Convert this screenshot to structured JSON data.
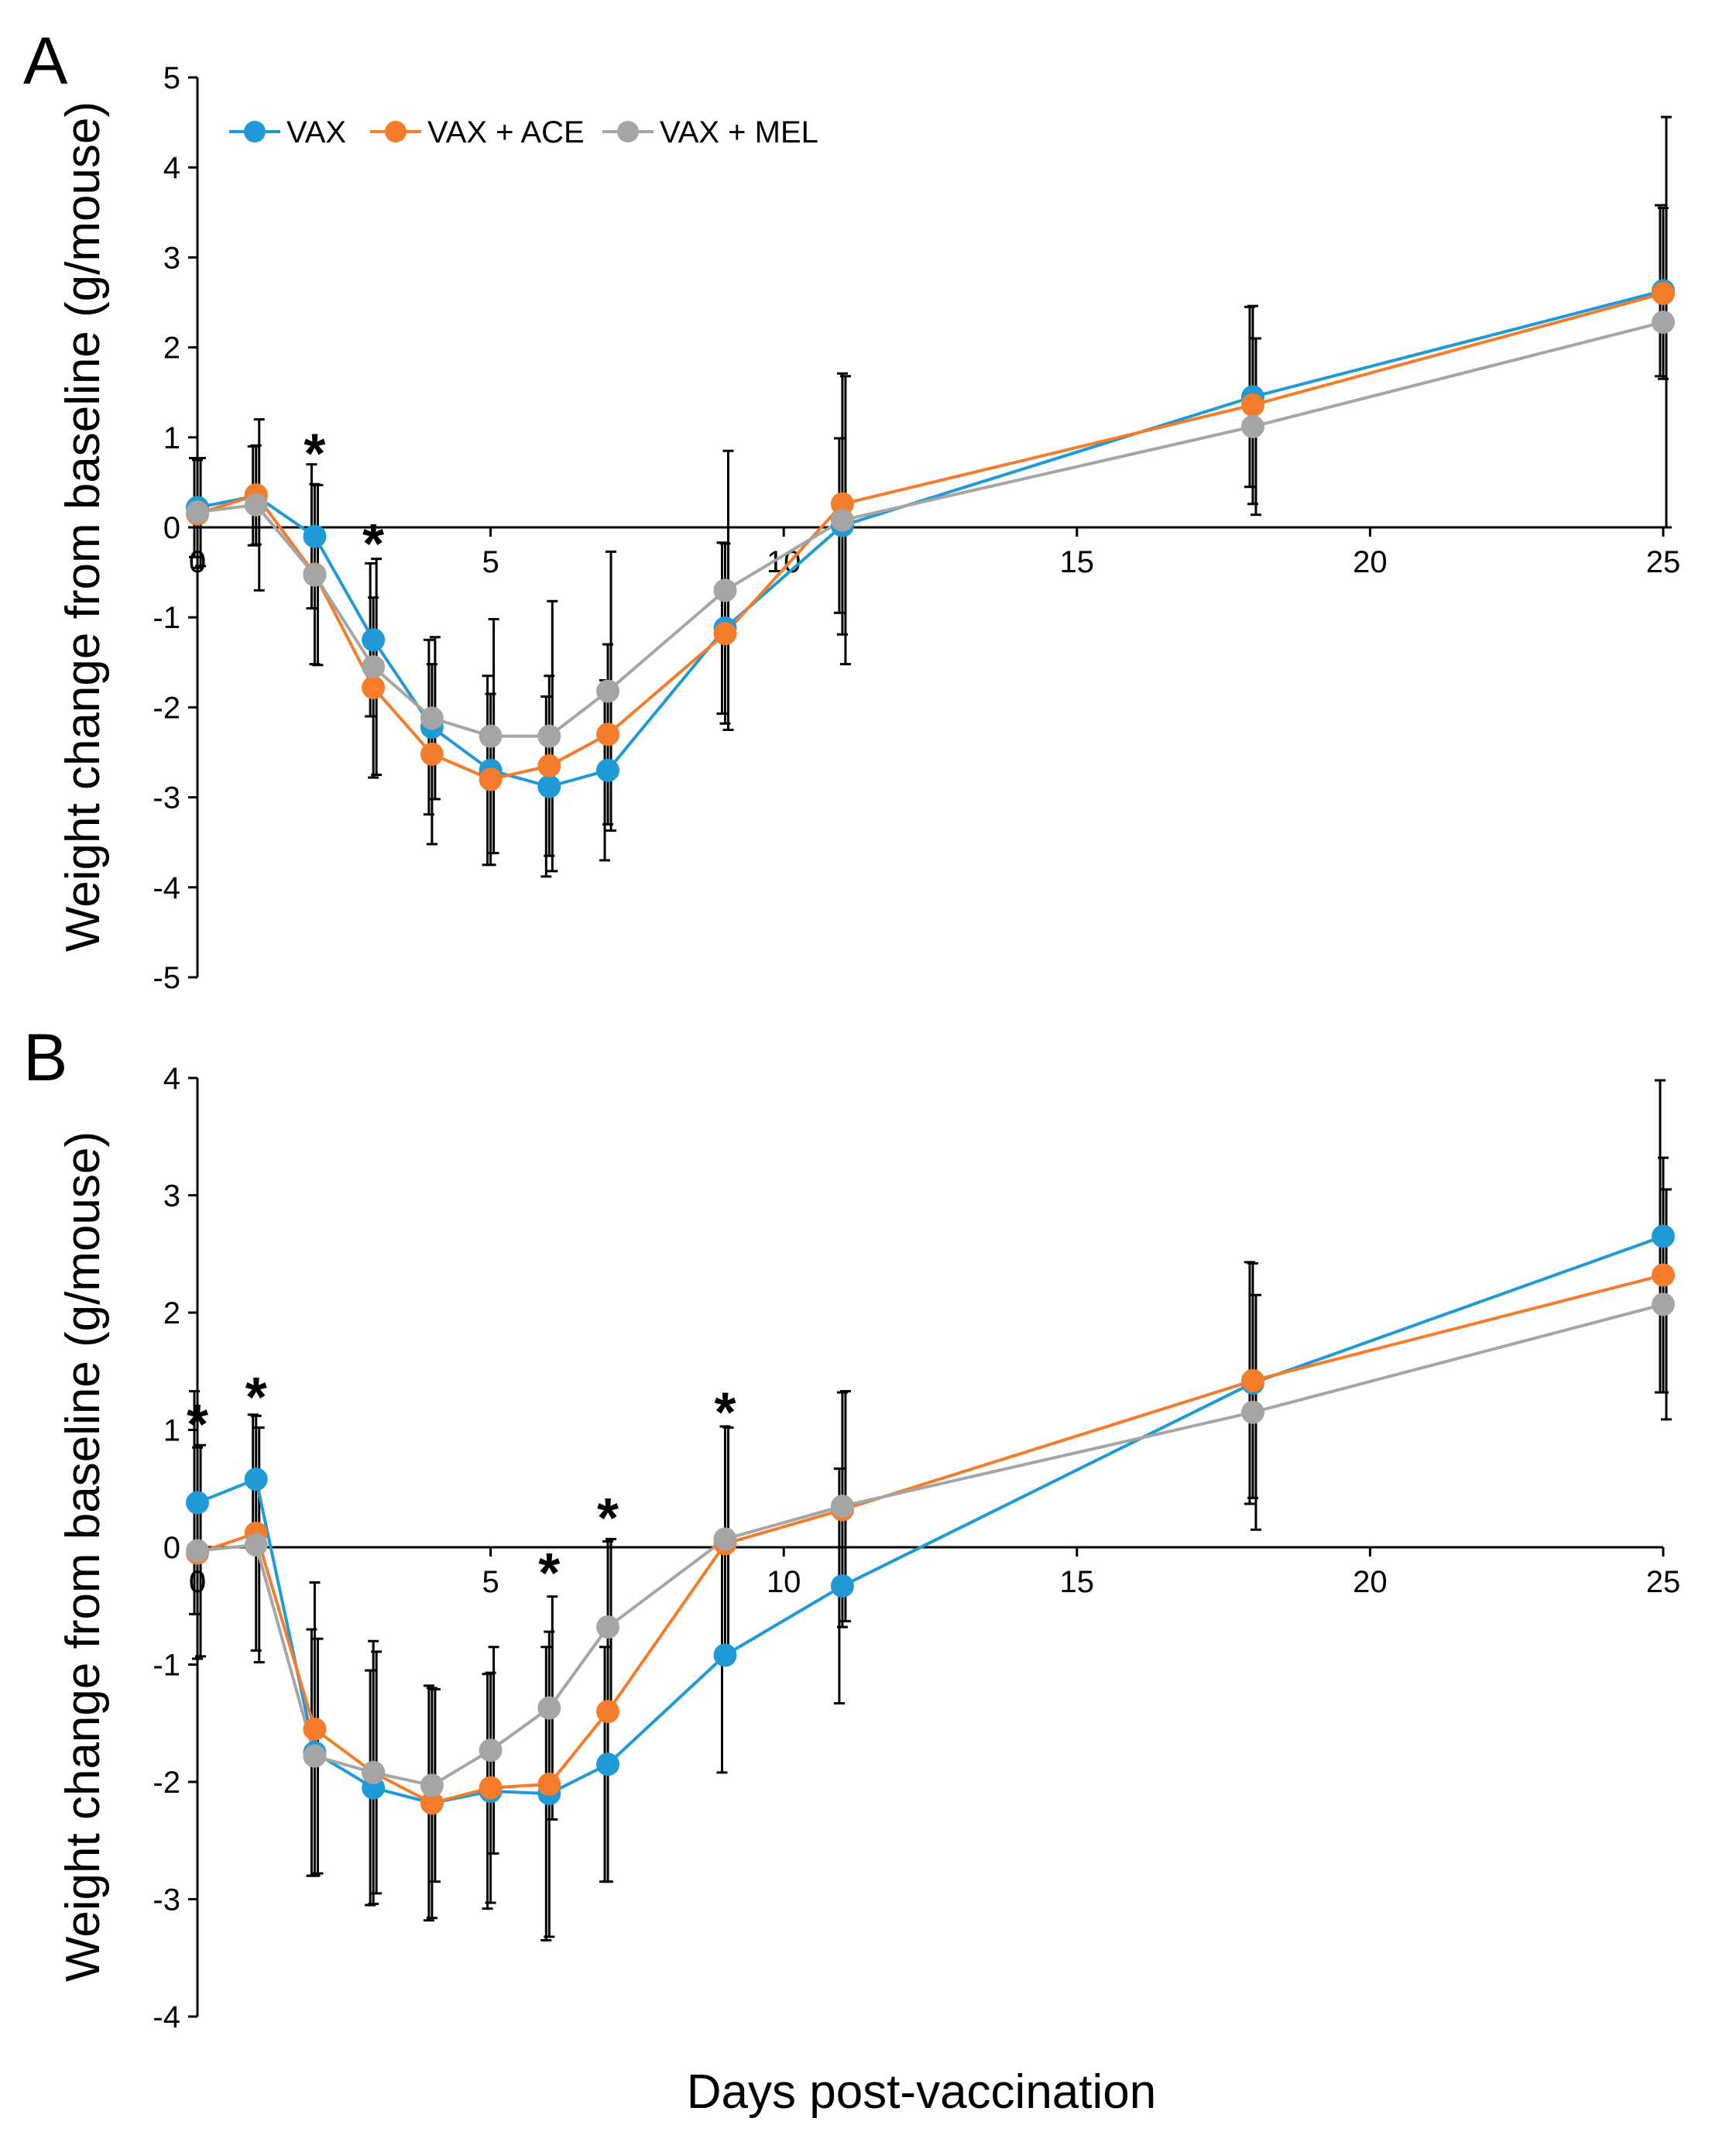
{
  "colors": {
    "VAX": "#1f9ad6",
    "VAX + ACE": "#f47c2a",
    "VAX + MEL": "#a5a5a5"
  },
  "x_axis_title": "Days post-vaccination",
  "chart_data": [
    {
      "type": "line",
      "panel": "A",
      "ylabel": "Weight change from baseline (g/mouse)",
      "xlim": [
        0,
        25
      ],
      "ylim": [
        -5,
        5
      ],
      "xticks": [
        "0",
        "5",
        "10",
        "15",
        "20",
        "25"
      ],
      "yticks": [
        "-5",
        "-4",
        "-3",
        "-2",
        "-1",
        "0",
        "1",
        "2",
        "3",
        "4",
        "5"
      ],
      "legend": {
        "position": "top-left",
        "entries": [
          "VAX",
          "VAX + ACE",
          "VAX + MEL"
        ]
      },
      "x": [
        0,
        1,
        2,
        3,
        4,
        5,
        6,
        7,
        9,
        11,
        18,
        25
      ],
      "series": [
        {
          "name": "VAX",
          "values": [
            0.22,
            0.35,
            -0.1,
            -1.25,
            -2.22,
            -2.7,
            -2.88,
            -2.7,
            -1.12,
            0.02,
            1.45,
            2.63
          ],
          "errors": [
            0.55,
            0.55,
            0.8,
            0.85,
            0.97,
            1.05,
            1.0,
            1.0,
            0.95,
            0.97,
            1.0,
            0.95
          ]
        },
        {
          "name": "VAX + ACE",
          "values": [
            0.15,
            0.36,
            -0.52,
            -1.78,
            -2.52,
            -2.8,
            -2.65,
            -2.3,
            -1.18,
            0.26,
            1.36,
            2.6
          ],
          "errors": [
            0.6,
            0.55,
            1.0,
            1.0,
            1.0,
            0.95,
            1.0,
            1.0,
            1.0,
            1.45,
            1.1,
            0.95
          ]
        },
        {
          "name": "VAX + MEL",
          "values": [
            0.17,
            0.25,
            -0.53,
            -1.55,
            -2.12,
            -2.32,
            -2.32,
            -1.82,
            -0.7,
            0.08,
            1.12,
            2.28
          ],
          "errors": [
            0.6,
            0.95,
            1.0,
            1.2,
            0.9,
            1.3,
            1.5,
            1.55,
            1.55,
            1.6,
            0.98,
            2.28
          ]
        }
      ],
      "annotations": [
        {
          "text": "*",
          "x": 2,
          "y": 0.95
        },
        {
          "text": "*",
          "x": 3,
          "y": -0.05
        }
      ]
    },
    {
      "type": "line",
      "panel": "B",
      "ylabel": "Weight change from baseline (g/mouse)",
      "xlim": [
        0,
        25
      ],
      "ylim": [
        -4,
        4
      ],
      "xticks": [
        "0",
        "5",
        "10",
        "15",
        "20",
        "25"
      ],
      "yticks": [
        "-4",
        "-3",
        "-2",
        "-1",
        "0",
        "1",
        "2",
        "3",
        "4"
      ],
      "x": [
        0,
        1,
        2,
        3,
        4,
        5,
        6,
        7,
        9,
        11,
        18,
        25
      ],
      "series": [
        {
          "name": "VAX",
          "values": [
            0.38,
            0.58,
            -1.75,
            -2.05,
            -2.18,
            -2.08,
            -2.1,
            -1.85,
            -0.92,
            -0.33,
            1.4,
            2.65
          ],
          "errors": [
            0.95,
            0.55,
            1.05,
            1.0,
            1.0,
            1.0,
            1.25,
            1.0,
            1.0,
            1.0,
            1.03,
            1.33
          ]
        },
        {
          "name": "VAX + ACE",
          "values": [
            -0.05,
            0.12,
            -1.55,
            -1.92,
            -2.18,
            -2.05,
            -2.02,
            -1.4,
            0.03,
            0.32,
            1.42,
            2.32
          ],
          "errors": [
            0.9,
            1.0,
            1.25,
            1.12,
            0.98,
            0.98,
            1.3,
            1.45,
            1.0,
            1.0,
            1.0,
            1.0
          ]
        },
        {
          "name": "VAX + MEL",
          "values": [
            -0.03,
            0.02,
            -1.78,
            -1.92,
            -2.03,
            -1.73,
            -1.37,
            -0.68,
            0.07,
            0.35,
            1.15,
            2.07
          ],
          "errors": [
            0.9,
            1.0,
            1.0,
            1.03,
            0.82,
            0.88,
            0.95,
            0.75,
            0.95,
            0.98,
            1.0,
            0.98
          ]
        }
      ],
      "annotations": [
        {
          "text": "*",
          "x": 0,
          "y": 1.15
        },
        {
          "text": "*",
          "x": 1,
          "y": 1.38
        },
        {
          "text": "*",
          "x": 6,
          "y": -0.12
        },
        {
          "text": "*",
          "x": 7,
          "y": 0.35
        },
        {
          "text": "*",
          "x": 9,
          "y": 1.25
        }
      ]
    }
  ]
}
